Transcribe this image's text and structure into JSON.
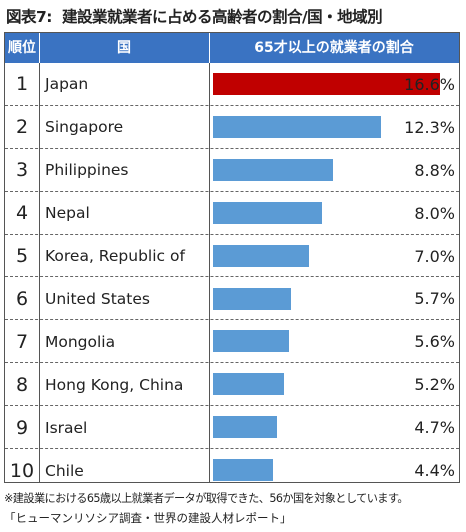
{
  "figure": {
    "number": "図表7:",
    "title": "建設業就業者に占める高齢者の割合/国・地域別"
  },
  "header": {
    "rank": "順位",
    "country": "国",
    "ratio": "65才以上の就業者の割合"
  },
  "colors": {
    "header_bg": "#3a73c2",
    "highlight_bar": "#c00000",
    "bar": "#5b9bd5"
  },
  "chart_data": {
    "type": "bar",
    "orientation": "horizontal",
    "title": "65才以上の就業者の割合",
    "ranks": [
      "1",
      "2",
      "3",
      "4",
      "5",
      "6",
      "7",
      "8",
      "9",
      "10"
    ],
    "categories": [
      "Japan",
      "Singapore",
      "Philippines",
      "Nepal",
      "Korea, Republic of",
      "United States",
      "Mongolia",
      "Hong Kong, China",
      "Israel",
      "Chile"
    ],
    "values": [
      16.6,
      12.3,
      8.8,
      8.0,
      7.0,
      5.7,
      5.6,
      5.2,
      4.7,
      4.4
    ],
    "labels": [
      "16.6%",
      "12.3%",
      "8.8%",
      "8.0%",
      "7.0%",
      "5.7%",
      "5.6%",
      "5.2%",
      "4.7%",
      "4.4%"
    ],
    "highlight": "Japan",
    "xlim": [
      0,
      17.8
    ]
  },
  "footnote": "※建設業における65歳以上就業者データが取得できた、56か国を対象としています。",
  "source": "「ヒューマンリソシア調査・世界の建設人材レポート」"
}
